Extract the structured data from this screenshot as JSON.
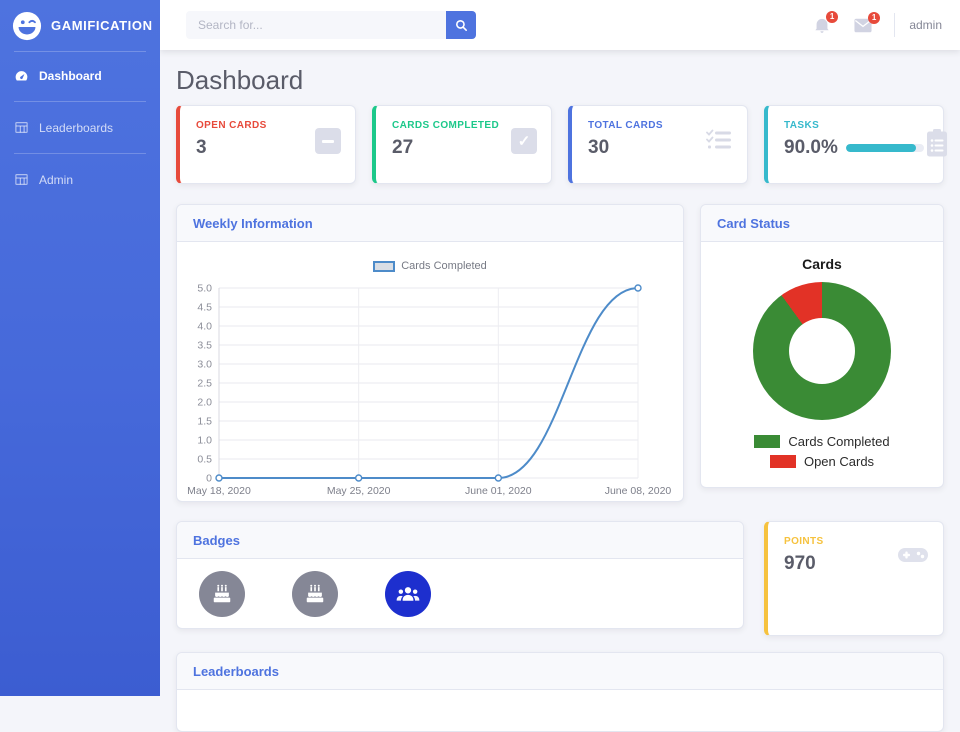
{
  "sidebar": {
    "brand": "GAMIFICATION",
    "items": [
      {
        "label": "Dashboard",
        "active": true
      },
      {
        "label": "Leaderboards",
        "active": false
      },
      {
        "label": "Admin",
        "active": false
      }
    ]
  },
  "topbar": {
    "search_placeholder": "Search for...",
    "alerts_badge": "1",
    "messages_badge": "1",
    "username": "admin"
  },
  "page_title": "Dashboard",
  "stats": [
    {
      "label": "OPEN CARDS",
      "value": "3",
      "color": "#e74a3b",
      "icon": "minus-square-icon"
    },
    {
      "label": "CARDS COMPLETED",
      "value": "27",
      "color": "#1cc88a",
      "icon": "check-square-icon"
    },
    {
      "label": "TOTAL CARDS",
      "value": "30",
      "color": "#4e73df",
      "icon": "tasks-list-icon"
    },
    {
      "label": "TASKS",
      "value": "90.0%",
      "color": "#36b9cc",
      "icon": "clipboard-list-icon",
      "progress_percent": 90,
      "progress_color": "#36b9cc"
    }
  ],
  "panels": {
    "weekly": {
      "header": "Weekly Information"
    },
    "card_status": {
      "header": "Card Status"
    },
    "badges": {
      "header": "Badges"
    },
    "leaderboards": {
      "header": "Leaderboards"
    }
  },
  "badges": {
    "items": [
      {
        "icon": "birthday-cake-icon",
        "color": "#858796"
      },
      {
        "icon": "birthday-cake-icon",
        "color": "#858796"
      },
      {
        "icon": "users-icon",
        "color": "#1d2fce"
      }
    ]
  },
  "points": {
    "label": "POINTS",
    "value": "970",
    "color": "#f6c23e",
    "icon": "gamepad-icon"
  },
  "chart_data": [
    {
      "type": "line",
      "title": "Weekly Information",
      "legend_position": "top",
      "series": [
        {
          "name": "Cards Completed",
          "values": [
            0,
            0,
            0,
            5
          ]
        }
      ],
      "x": [
        "May 18, 2020",
        "May 25, 2020",
        "June 01, 2020",
        "June 08, 2020"
      ],
      "yticks": [
        "5.0",
        "4.5",
        "4.0",
        "3.5",
        "3.0",
        "2.5",
        "2.0",
        "1.5",
        "1.0",
        "0.5",
        "0"
      ],
      "ylim": [
        0,
        5
      ],
      "grid": true,
      "line_color": "#4d8bc9",
      "point_fill": "#ffffff"
    },
    {
      "type": "donut",
      "title": "Cards",
      "slices": [
        {
          "label": "Cards Completed",
          "value": 27,
          "color": "#3a8b35"
        },
        {
          "label": "Open Cards",
          "value": 3,
          "color": "#e23226"
        }
      ],
      "legend_position": "bottom"
    }
  ]
}
